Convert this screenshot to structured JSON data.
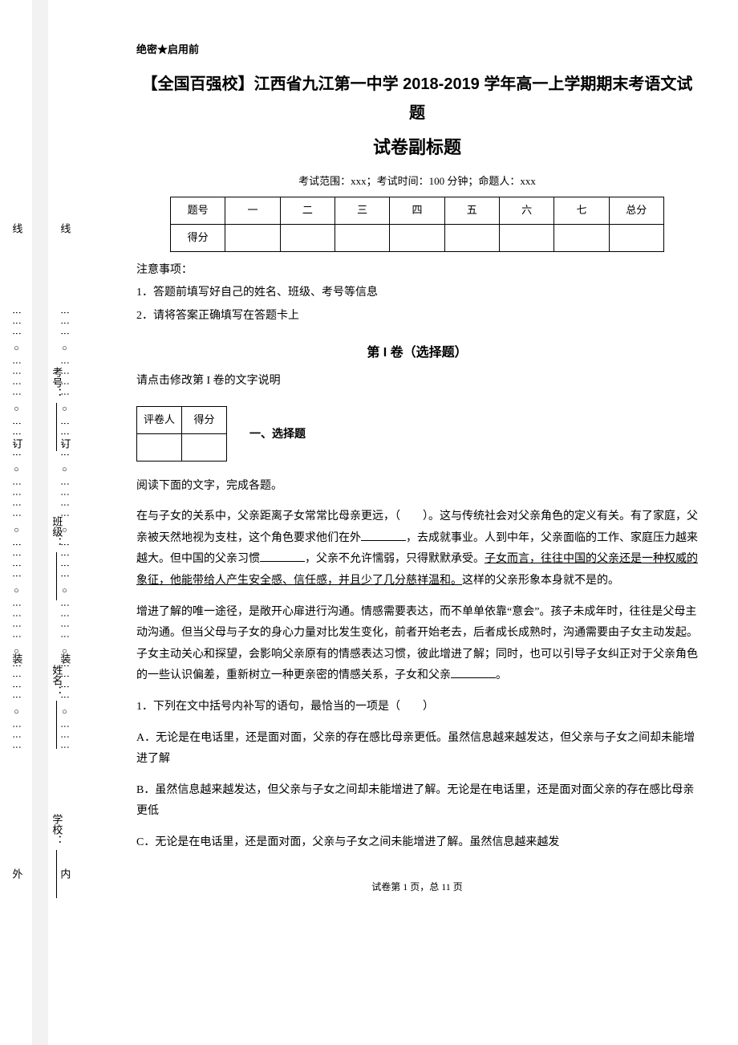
{
  "margins": {
    "outer_labels": [
      "线",
      "订",
      "装",
      "外"
    ],
    "inner_labels": [
      "线",
      "订",
      "装",
      "内"
    ],
    "field_labels": [
      "考号：",
      "班级：",
      "姓名：",
      "学校："
    ]
  },
  "header": {
    "secret": "绝密★启用前",
    "title": "【全国百强校】江西省九江第一中学 2018-2019 学年高一上学期期末考语文试题",
    "subtitle": "试卷副标题",
    "exam_info": "考试范围：xxx；考试时间：100 分钟；命题人：xxx"
  },
  "score_table": {
    "row1": [
      "题号",
      "一",
      "二",
      "三",
      "四",
      "五",
      "六",
      "七",
      "总分"
    ],
    "row2_label": "得分"
  },
  "notes": {
    "heading": "注意事项：",
    "items": [
      "1．答题前填写好自己的姓名、班级、考号等信息",
      "2．请将答案正确填写在答题卡上"
    ]
  },
  "volume": {
    "title": "第 I 卷（选择题）",
    "hint": "请点击修改第 I 卷的文字说明"
  },
  "grade_table": {
    "h1": "评卷人",
    "h2": "得分"
  },
  "section1": {
    "title": "一、选择题",
    "intro": "阅读下面的文字，完成各题。",
    "p1a": "在与子女的关系中，父亲距离子女常常比母亲更远，（　　）。这与传统社会对父亲角色的定义有关。有了家庭，父亲被天然地视为支柱，这个角色要求他们在外",
    "p1b": "，去成就事业。人到中年，父亲面临的工作、家庭压力越来越大。但中国的父亲习惯",
    "p1c": "，父亲不允许懦弱，只得默默承受。",
    "p1u": "子女而言，往往中国的父亲还是一种权威的象征，他能带给人产生安全感、信任感，并且少了几分慈祥温和。",
    "p1d": "这样的父亲形象本身就不是的。",
    "p2": "增进了解的唯一途径，是敞开心扉进行沟通。情感需要表达，而不单单依靠“意会”。孩子未成年时，往往是父母主动沟通。但当父母与子女的身心力量对比发生变化，前者开始老去，后者成长成熟时，沟通需要由子女主动发起。子女主动关心和探望，会影响父亲原有的情感表达习惯，彼此增进了解；同时，也可以引导子女纠正对于父亲角色的一些认识偏差，重新树立一种更亲密的情感关系，子女和父亲",
    "p2e": "。",
    "q1": "1．下列在文中括号内补写的语句，最恰当的一项是（　　）",
    "optA": "A．无论是在电话里，还是面对面，父亲的存在感比母亲更低。虽然信息越来越发达，但父亲与子女之间却未能增进了解",
    "optB": "B．虽然信息越来越发达，但父亲与子女之间却未能增进了解。无论是在电话里，还是面对面父亲的存在感比母亲更低",
    "optC": "C．无论是在电话里，还是面对面，父亲与子女之间未能增进了解。虽然信息越来越发"
  },
  "footer": "试卷第 1 页，总 11 页"
}
